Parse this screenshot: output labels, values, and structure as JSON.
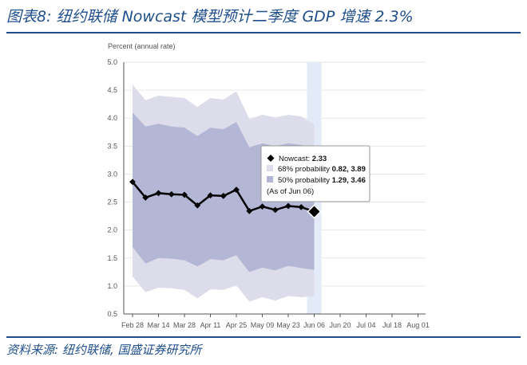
{
  "header": {
    "title": "图表8:  纽约联储 Nowcast 模型预计二季度 GDP 增速 2.3%"
  },
  "footer": {
    "source": "资料来源:  纽约联储,  国盛证券研究所"
  },
  "colors": {
    "band68": "#dcdcea",
    "band50": "#b3b6d4",
    "line": "#000000",
    "highlight": "#e4ebf8",
    "rule": "#1f4e8c"
  },
  "chart_data": {
    "type": "line",
    "ylabel": "Percent (annual rate)",
    "ylim": [
      0.5,
      5.0
    ],
    "yticks": [
      "5.0",
      "4.5",
      "4.0",
      "3.5",
      "3.0",
      "2.5",
      "2.0",
      "1.5",
      "1.0",
      "0.5"
    ],
    "ytick_values": [
      5.0,
      4.5,
      4.0,
      3.5,
      3.0,
      2.5,
      2.0,
      1.5,
      1.0,
      0.5
    ],
    "xticks": [
      "Feb 28",
      "Mar 14",
      "Mar 28",
      "Apr 11",
      "Apr 25",
      "May 09",
      "May 23",
      "Jun 06",
      "Jun 20",
      "Jul 04",
      "Jul 18",
      "Aug 01"
    ],
    "x_start": "Feb 28",
    "x_end": "Aug 01",
    "x_dates": [
      "2020-02-28",
      "2020-03-06",
      "2020-03-13",
      "2020-03-20",
      "2020-03-27",
      "2020-04-03",
      "2020-04-10",
      "2020-04-17",
      "2020-04-24",
      "2020-05-01",
      "2020-05-08",
      "2020-05-15",
      "2020-05-22",
      "2020-05-29",
      "2020-06-05"
    ],
    "nowcast": [
      2.86,
      2.58,
      2.66,
      2.64,
      2.63,
      2.44,
      2.62,
      2.61,
      2.72,
      2.34,
      2.42,
      2.36,
      2.43,
      2.41,
      2.33
    ],
    "band50_lower": [
      1.7,
      1.4,
      1.5,
      1.49,
      1.46,
      1.35,
      1.48,
      1.46,
      1.55,
      1.25,
      1.33,
      1.28,
      1.36,
      1.32,
      1.29
    ],
    "band50_upper": [
      4.1,
      3.85,
      3.9,
      3.85,
      3.83,
      3.68,
      3.83,
      3.8,
      3.93,
      3.48,
      3.55,
      3.5,
      3.55,
      3.52,
      3.46
    ],
    "band68_lower": [
      1.17,
      0.89,
      0.97,
      0.96,
      0.93,
      0.78,
      0.94,
      0.93,
      1.01,
      0.72,
      0.8,
      0.74,
      0.82,
      0.8,
      0.82
    ],
    "band68_upper": [
      4.6,
      4.32,
      4.4,
      4.38,
      4.36,
      4.2,
      4.36,
      4.33,
      4.48,
      3.98,
      4.06,
      4.01,
      4.06,
      4.03,
      3.89
    ],
    "highlight_date": "2020-06-05",
    "tooltip": {
      "nowcast_label": "Nowcast: ",
      "nowcast_value": "2.33",
      "p68_label": "68% probability ",
      "p68_value": "0.82, 3.89",
      "p50_label": "50% probability ",
      "p50_value": "1.29, 3.46",
      "asof": "(As of Jun 06)"
    }
  }
}
